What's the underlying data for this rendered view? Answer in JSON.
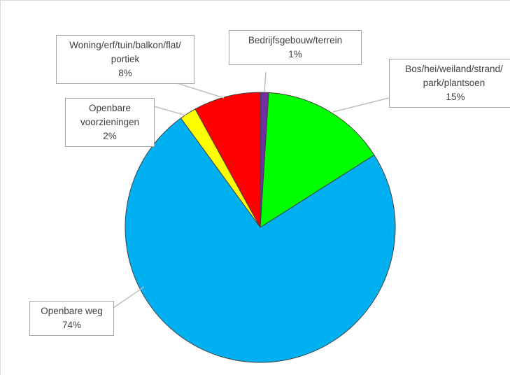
{
  "chart_data": {
    "type": "pie",
    "categories": [
      "Bedrijfsgebouw/terrein",
      "Bos/hei/weiland/strand/park/plantsoen",
      "Openbare weg",
      "Openbare voorzieningen",
      "Woning/erf/tuin/balkon/flat/portiek"
    ],
    "values": [
      1,
      15,
      74,
      2,
      8
    ],
    "value_labels": [
      "1%",
      "15%",
      "74%",
      "2%",
      "8%"
    ],
    "colors": [
      "#7030a0",
      "#00ff00",
      "#00b0f0",
      "#ffff00",
      "#ff0000"
    ]
  }
}
